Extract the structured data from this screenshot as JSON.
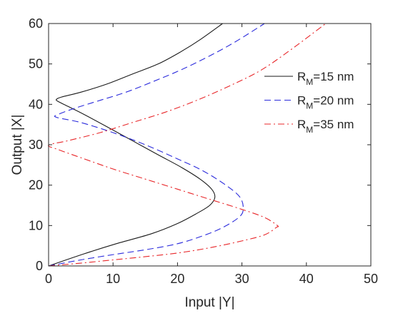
{
  "chart_data": {
    "type": "line",
    "xlabel": "Input |Y|",
    "ylabel": "Output |X|",
    "xlim": [
      0,
      50
    ],
    "ylim": [
      0,
      60
    ],
    "xticks": [
      0,
      10,
      20,
      30,
      40,
      50
    ],
    "yticks": [
      0,
      10,
      20,
      30,
      40,
      50,
      60
    ],
    "grid": false,
    "legend_position": "right",
    "series": [
      {
        "name": "R_M=15 nm",
        "legend_main": "R",
        "legend_sub": "M",
        "legend_rest": "=15 nm",
        "color": "#1a1a1a",
        "dash": "solid",
        "points": [
          [
            0,
            0
          ],
          [
            5.5,
            3
          ],
          [
            10.5,
            5.5
          ],
          [
            16,
            8
          ],
          [
            20,
            10.5
          ],
          [
            23,
            13
          ],
          [
            25,
            15
          ],
          [
            25.8,
            17
          ],
          [
            25.3,
            19
          ],
          [
            23.5,
            21.5
          ],
          [
            20.5,
            24.5
          ],
          [
            17,
            27.5
          ],
          [
            13,
            31
          ],
          [
            9,
            34.5
          ],
          [
            5.5,
            37.5
          ],
          [
            3,
            39.5
          ],
          [
            1.5,
            40.7
          ],
          [
            1.2,
            41.2
          ],
          [
            2,
            41.8
          ],
          [
            5,
            43
          ],
          [
            9,
            45
          ],
          [
            13,
            47.5
          ],
          [
            17,
            50
          ],
          [
            20.5,
            53
          ],
          [
            23.5,
            56
          ],
          [
            27,
            60
          ]
        ]
      },
      {
        "name": "R_M=20 nm",
        "legend_main": "R",
        "legend_sub": "M",
        "legend_rest": "=20 nm",
        "color": "#2b2bdc",
        "dash": "dashed",
        "points": [
          [
            0,
            0
          ],
          [
            5,
            1.5
          ],
          [
            10,
            2.8
          ],
          [
            15,
            4
          ],
          [
            20,
            5.5
          ],
          [
            24,
            7.5
          ],
          [
            27,
            9.5
          ],
          [
            29.5,
            12
          ],
          [
            30.2,
            14
          ],
          [
            29.7,
            17
          ],
          [
            27.5,
            20
          ],
          [
            24,
            23.5
          ],
          [
            20,
            26.5
          ],
          [
            15,
            30
          ],
          [
            10,
            33
          ],
          [
            5,
            35.5
          ],
          [
            1.2,
            36.8
          ],
          [
            1.5,
            37.5
          ],
          [
            4,
            39
          ],
          [
            8,
            41
          ],
          [
            12,
            43
          ],
          [
            16,
            45.5
          ],
          [
            20.5,
            48.5
          ],
          [
            25,
            52
          ],
          [
            29,
            55.5
          ],
          [
            33.5,
            60
          ]
        ]
      },
      {
        "name": "R_M=35 nm",
        "legend_main": "R",
        "legend_sub": "M",
        "legend_rest": "=35 nm",
        "color": "#e8272a",
        "dash": "dashdot",
        "points": [
          [
            0,
            0
          ],
          [
            5,
            0.7
          ],
          [
            10,
            1.5
          ],
          [
            15,
            2.3
          ],
          [
            20,
            3.2
          ],
          [
            25,
            4.5
          ],
          [
            30,
            6.2
          ],
          [
            33.5,
            7.7
          ],
          [
            35.3,
            9.5
          ],
          [
            35.5,
            10
          ],
          [
            33.5,
            12
          ],
          [
            30,
            14
          ],
          [
            25,
            16.5
          ],
          [
            20,
            19
          ],
          [
            15,
            21.5
          ],
          [
            10,
            24
          ],
          [
            5,
            26.8
          ],
          [
            1.5,
            28.8
          ],
          [
            0,
            29.9
          ],
          [
            3,
            31
          ],
          [
            8,
            33
          ],
          [
            13,
            35.5
          ],
          [
            18,
            38
          ],
          [
            23,
            41
          ],
          [
            28,
            44.5
          ],
          [
            33,
            48.5
          ],
          [
            38,
            54
          ],
          [
            43,
            60
          ]
        ]
      }
    ]
  }
}
